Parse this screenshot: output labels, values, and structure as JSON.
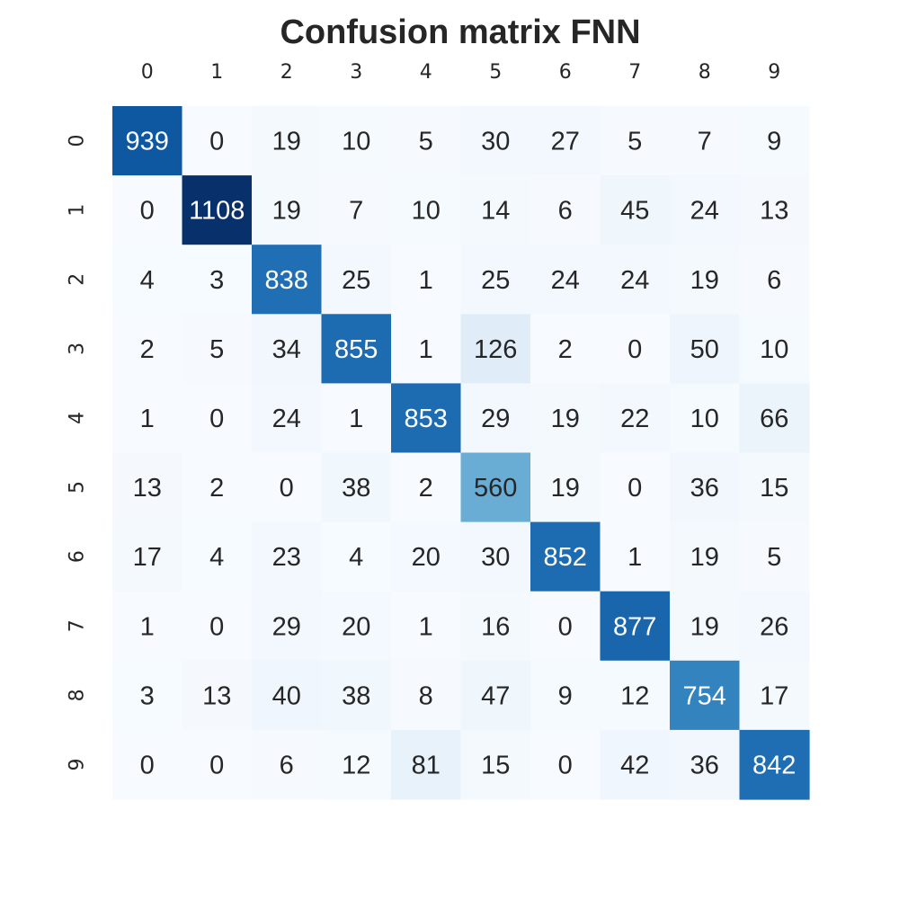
{
  "chart_data": {
    "type": "heatmap",
    "title": "Confusion matrix FNN",
    "xlabel": "",
    "ylabel": "",
    "x_categories": [
      "0",
      "1",
      "2",
      "3",
      "4",
      "5",
      "6",
      "7",
      "8",
      "9"
    ],
    "y_categories": [
      "0",
      "1",
      "2",
      "3",
      "4",
      "5",
      "6",
      "7",
      "8",
      "9"
    ],
    "x_axis_position": "top",
    "colormap": "Blues",
    "colorbar": false,
    "grid": false,
    "legend": "none",
    "value_range": [
      0,
      1108
    ],
    "values": [
      [
        939,
        0,
        19,
        10,
        5,
        30,
        27,
        5,
        7,
        9
      ],
      [
        0,
        1108,
        19,
        7,
        10,
        14,
        6,
        45,
        24,
        13
      ],
      [
        4,
        3,
        838,
        25,
        1,
        25,
        24,
        24,
        19,
        6
      ],
      [
        2,
        5,
        34,
        855,
        1,
        126,
        2,
        0,
        50,
        10
      ],
      [
        1,
        0,
        24,
        1,
        853,
        29,
        19,
        22,
        10,
        66
      ],
      [
        13,
        2,
        0,
        38,
        2,
        560,
        19,
        0,
        36,
        15
      ],
      [
        17,
        4,
        23,
        4,
        20,
        30,
        852,
        1,
        19,
        5
      ],
      [
        1,
        0,
        29,
        20,
        1,
        16,
        0,
        877,
        19,
        26
      ],
      [
        3,
        13,
        40,
        38,
        8,
        47,
        9,
        12,
        754,
        17
      ],
      [
        0,
        0,
        6,
        12,
        81,
        15,
        0,
        42,
        36,
        842
      ]
    ]
  }
}
